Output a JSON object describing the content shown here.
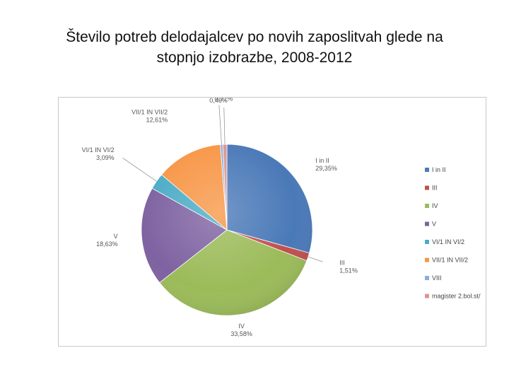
{
  "slide": {
    "title_line1": "Število potreb delodajalcev po novih zaposlitvah glede na",
    "title_line2": "stopnjo izobrazbe, 2008-2012"
  },
  "chart_data": {
    "type": "pie",
    "title": "",
    "legend_position": "right",
    "slices": [
      {
        "name": "I in II",
        "label": "I in II",
        "value_text": "29,35%",
        "value": 29.35,
        "color": "#4a79b8"
      },
      {
        "name": "III",
        "label": "III",
        "value_text": "1,51%",
        "value": 1.51,
        "color": "#c0504d"
      },
      {
        "name": "IV",
        "label": "IV",
        "value_text": "33,58%",
        "value": 33.58,
        "color": "#9bbb59"
      },
      {
        "name": "V",
        "label": "V",
        "value_text": "18,63%",
        "value": 18.63,
        "color": "#7e62a1"
      },
      {
        "name": "VI/1 IN VI/2",
        "label": "VI/1 IN VI/2",
        "value_text": "3,09%",
        "value": 3.09,
        "color": "#4bacc6"
      },
      {
        "name": "VII/1 IN VII/2",
        "label": "VII/1 IN VII/2",
        "value_text": "12,61%",
        "value": 12.61,
        "color": "#f79646"
      },
      {
        "name": "VIII",
        "label": "VIII",
        "value_text": "0,46%",
        "value": 0.46,
        "color": "#8faadc"
      },
      {
        "name": "magister 2.bol.st/",
        "label": "magister 2.bol.st/",
        "value_text": "0,77%",
        "value": 0.77,
        "color": "#d99694"
      }
    ]
  }
}
